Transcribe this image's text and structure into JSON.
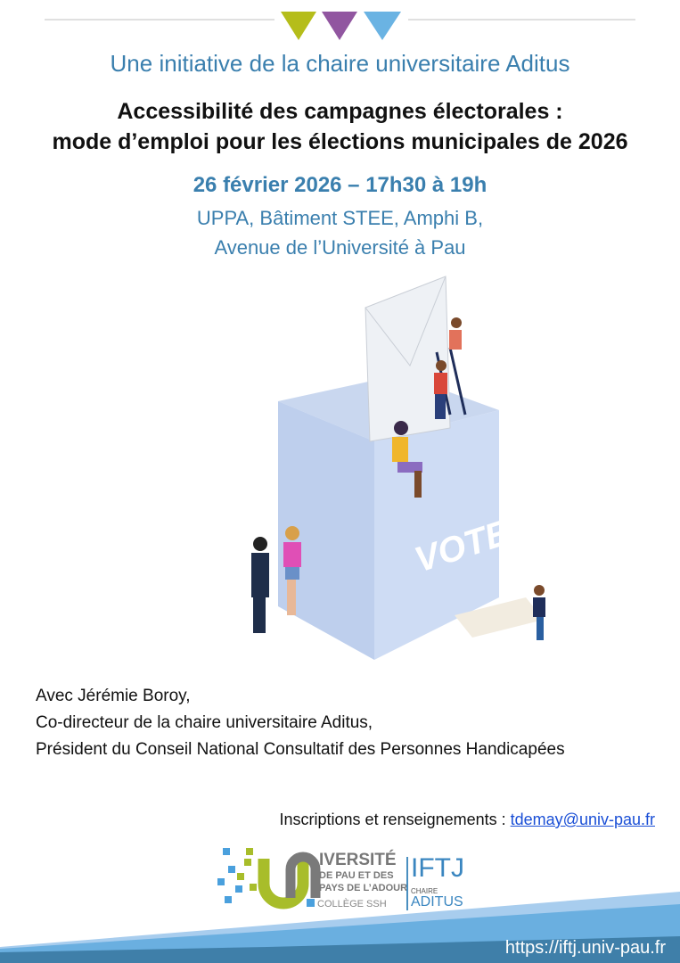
{
  "header": {
    "initiative": "Une initiative de la chaire universitaire Aditus",
    "triangle_colors": [
      "#b5bd1a",
      "#9156a0",
      "#6ab3e3"
    ]
  },
  "event": {
    "title_line1": "Accessibilité des campagnes électorales :",
    "title_line2": "mode d’emploi pour les élections municipales de 2026",
    "date": "26 février 2026 – 17h30 à 19h",
    "location_line1": "UPPA, Bâtiment STEE, Amphi B,",
    "location_line2": "Avenue de l’Université à Pau"
  },
  "illustration": {
    "ballot_text": "VOTE"
  },
  "speaker": {
    "line1": "Avec Jérémie Boroy,",
    "line2": "Co-directeur de la chaire universitaire Aditus,",
    "line3": "Président du Conseil National Consultatif des Personnes Handicapées"
  },
  "contact": {
    "label": "Inscriptions et renseignements : ",
    "email": "tdemay@univ-pau.fr"
  },
  "logos": {
    "university_line1": "IVERSITÉ",
    "university_line2": "DE PAU ET DES",
    "university_line3": "PAYS DE L’ADOUR",
    "college": "COLLÈGE SSH",
    "iftj": "IFTJ",
    "chaire": "CHAIRE",
    "aditus": "ADITUS"
  },
  "footer": {
    "url": "https://iftj.univ-pau.fr"
  },
  "colors": {
    "accent_blue": "#3a7fae",
    "band_dark": "#3f7fa9",
    "band_light": "#6aafe0"
  }
}
